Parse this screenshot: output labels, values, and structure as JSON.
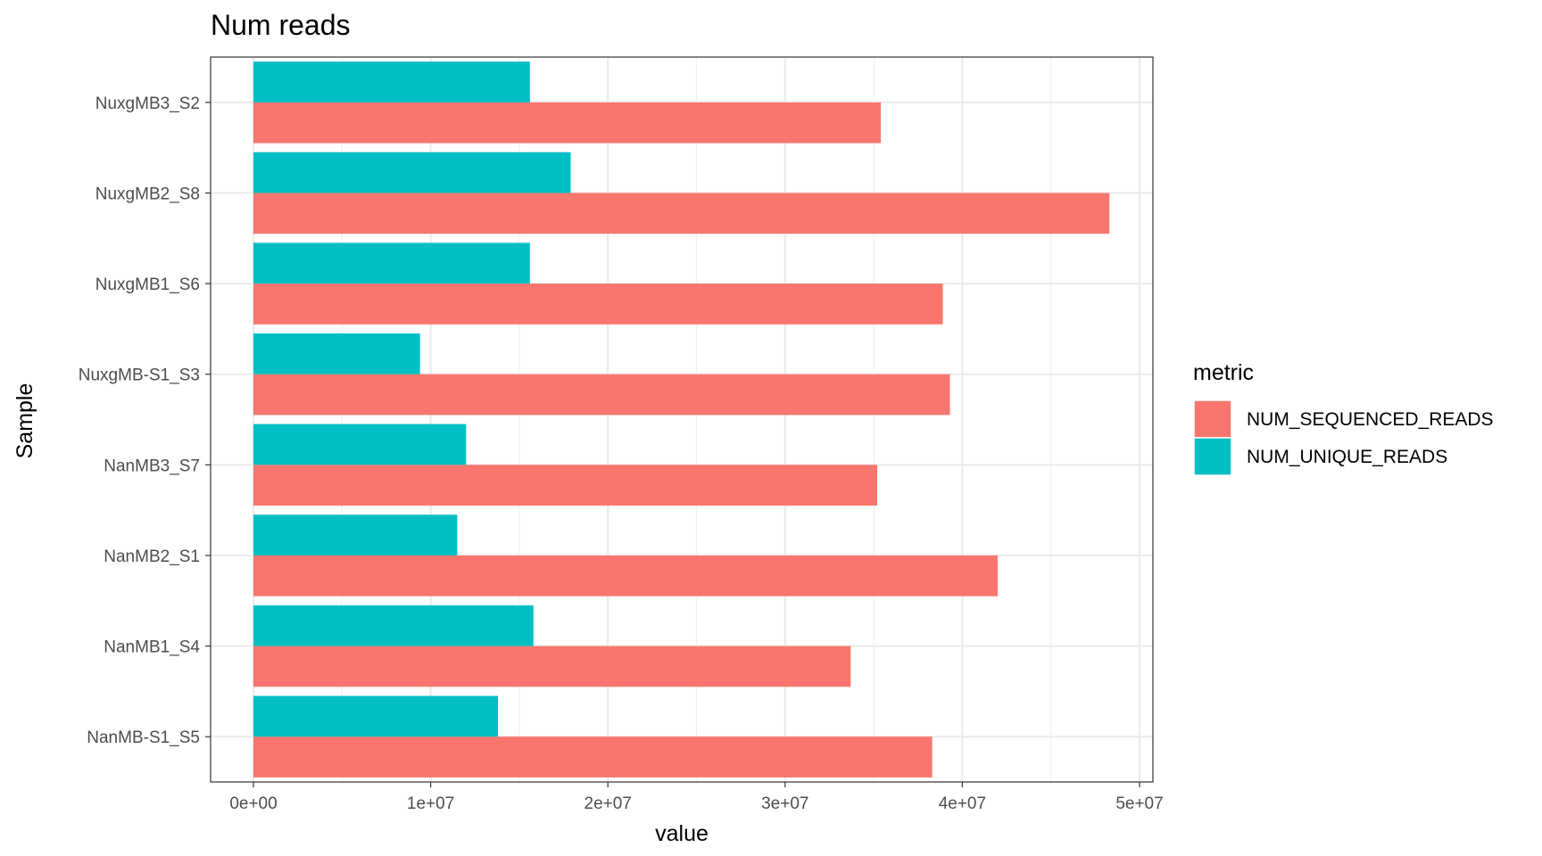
{
  "chart_data": {
    "type": "bar",
    "orientation": "horizontal",
    "title": "Num reads",
    "xlabel": "value",
    "ylabel": "Sample",
    "xlim": [
      0,
      50000000
    ],
    "x_ticks": [
      0,
      10000000,
      20000000,
      30000000,
      40000000,
      50000000
    ],
    "x_tick_labels": [
      "0e+00",
      "1e+07",
      "2e+07",
      "3e+07",
      "4e+07",
      "5e+07"
    ],
    "categories": [
      "NanMB-S1_S5",
      "NanMB1_S4",
      "NanMB2_S1",
      "NanMB3_S7",
      "NuxgMB-S1_S3",
      "NuxgMB1_S6",
      "NuxgMB2_S8",
      "NuxgMB3_S2"
    ],
    "series": [
      {
        "name": "NUM_SEQUENCED_READS",
        "color": "#F8766D",
        "values": [
          38300000,
          33700000,
          42000000,
          35200000,
          39300000,
          38900000,
          48300000,
          35400000
        ]
      },
      {
        "name": "NUM_UNIQUE_READS",
        "color": "#00BFC4",
        "values": [
          13800000,
          15800000,
          11500000,
          12000000,
          9400000,
          15600000,
          17900000,
          15600000
        ]
      }
    ],
    "legend": {
      "title": "metric",
      "position": "right"
    },
    "grid": true
  }
}
